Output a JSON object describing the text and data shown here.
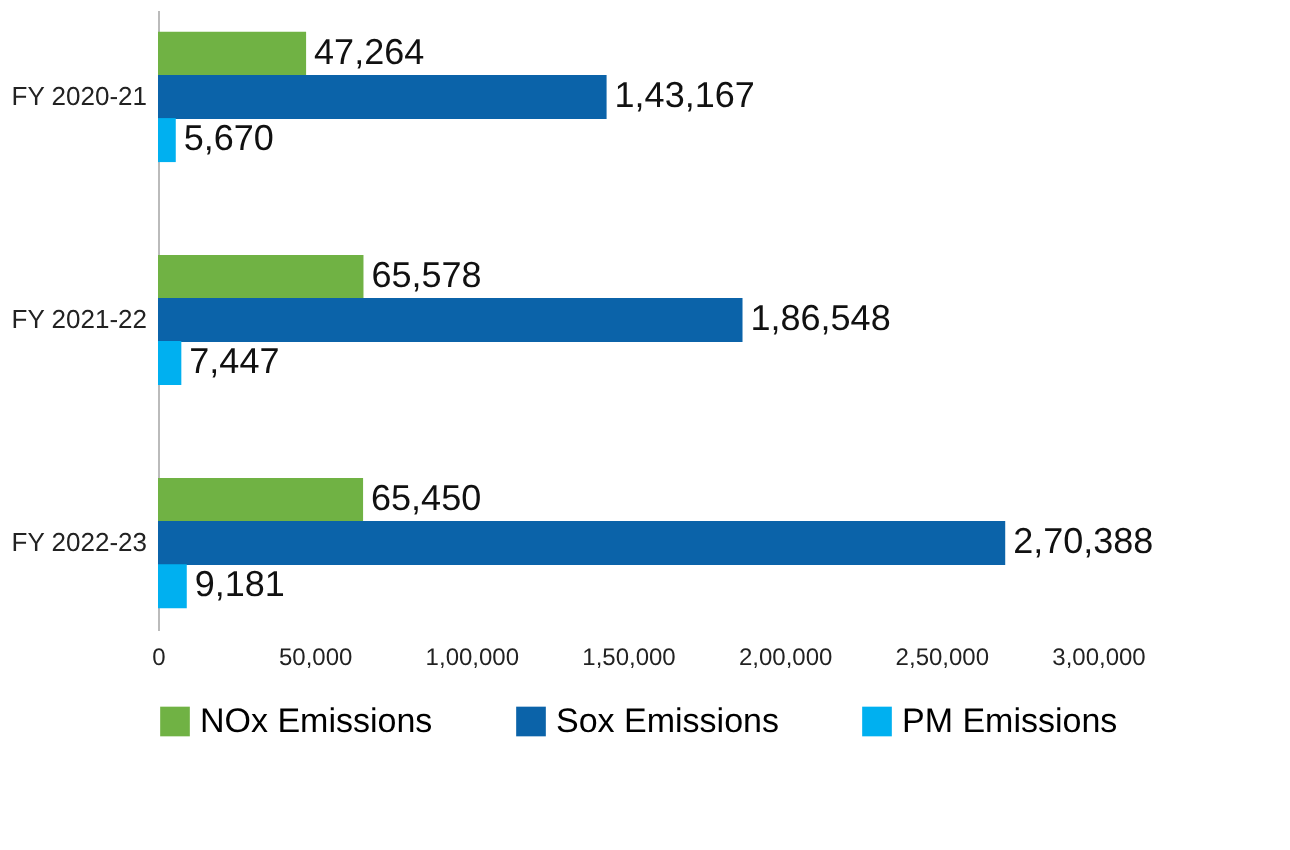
{
  "chart_data": {
    "type": "bar",
    "orientation": "horizontal",
    "categories": [
      "FY 2020-21",
      "FY 2021-22",
      "FY 2022-23"
    ],
    "series": [
      {
        "name": "NOx Emissions",
        "color": "#70b244",
        "values": [
          47264,
          65578,
          65450
        ],
        "value_labels": [
          "47,264",
          "65,578",
          "65,450"
        ]
      },
      {
        "name": "Sox Emissions",
        "color": "#0b63a9",
        "values": [
          143167,
          186548,
          270388
        ],
        "value_labels": [
          "1,43,167",
          "1,86,548",
          "2,70,388"
        ]
      },
      {
        "name": "PM Emissions",
        "color": "#00b0f0",
        "values": [
          5670,
          7447,
          9181
        ],
        "value_labels": [
          "5,670",
          "7,447",
          "9,181"
        ]
      }
    ],
    "xlim": [
      0,
      300000
    ],
    "xticks": [
      0,
      {
        "value": 50000,
        "label": "50,000"
      },
      {
        "value": 100000,
        "label": "1,00,000"
      },
      {
        "value": 150000,
        "label": "1,50,000"
      },
      {
        "value": 200000,
        "label": "2,00,000"
      },
      {
        "value": 250000,
        "label": "2,50,000"
      },
      {
        "value": 300000,
        "label": "3,00,000"
      }
    ],
    "grid": false,
    "legend": "bottom"
  }
}
